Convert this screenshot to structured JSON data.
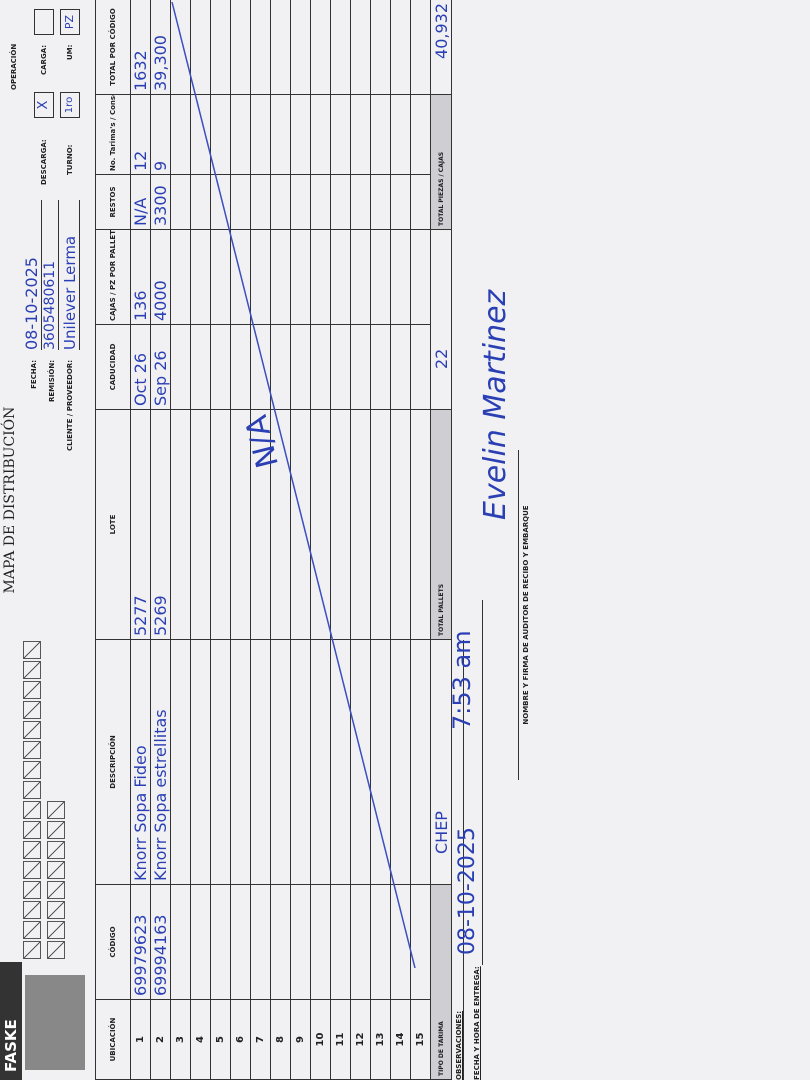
{
  "header": {
    "logo": "FASKE",
    "title": "MAPA DE DISTRIBUCIÓN",
    "fecha_label": "FECHA:",
    "fecha": "08-10-2025",
    "remision_label": "REMISIÓN:",
    "remision": "3605480611",
    "cliente_label": "CLIENTE / PROVEEDOR:",
    "cliente": "Unilever Lerma",
    "operacion_label": "OPERACIÓN",
    "descarga_label": "DESCARGA:",
    "descarga": "X",
    "carga_label": "CARGA:",
    "turno_label": "TURNO:",
    "turno": "1ro",
    "um_label": "UM:",
    "um": "PZ"
  },
  "table": {
    "columns": [
      "UBICACIÓN",
      "CÓDIGO",
      "DESCRIPCIÓN",
      "LOTE",
      "CADUCIDAD",
      "CAJAS / PZ POR PALLET",
      "RESTOS",
      "No. Tarima's / Consecutivo",
      "TOTAL POR CÓDIGO"
    ],
    "rows": [
      [
        "1",
        "69979623",
        "Knorr Sopa Fideo",
        "5277",
        "Oct 26",
        "136",
        "N/A",
        "12",
        "1632"
      ],
      [
        "2",
        "69994163",
        "Knorr Sopa estrellitas",
        "5269",
        "Sep 26",
        "4000",
        "3300",
        "9",
        "39,300"
      ],
      [
        "3"
      ],
      [
        "4"
      ],
      [
        "5"
      ],
      [
        "6"
      ],
      [
        "7"
      ],
      [
        "8"
      ],
      [
        "9"
      ],
      [
        "10"
      ],
      [
        "11"
      ],
      [
        "12"
      ],
      [
        "13"
      ],
      [
        "14"
      ],
      [
        "15"
      ]
    ]
  },
  "totals": {
    "tipo_label": "TIPO DE TARIMA",
    "tipo": "CHEP",
    "pallets_label": "TOTAL PALLETS",
    "pallets": "22",
    "piezas_label": "TOTAL PIEZAS / CAJAS",
    "piezas": "40,932"
  },
  "annotation": "N/A",
  "footer": {
    "observaciones_label": "OBSERVACIONES:",
    "fecha_hora_label": "FECHA Y HORA DE ENTREGA:",
    "fecha": "08-10-2025",
    "hora": "7:53 am",
    "firma_nombre": "Evelin Martinez",
    "firma_label": "NOMBRE Y FIRMA DE AUDITOR DE RECIBO Y EMBARQUE"
  }
}
